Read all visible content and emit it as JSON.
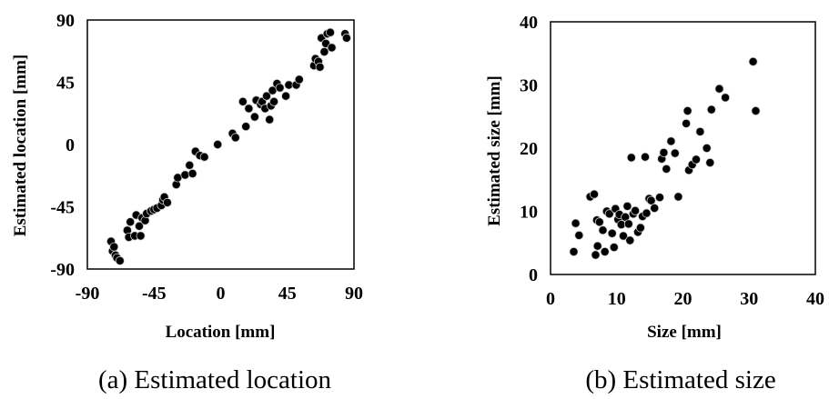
{
  "chart_data": [
    {
      "type": "scatter",
      "caption": "(a) Estimated location",
      "xlabel": "Location [mm]",
      "ylabel": "Estimated location [mm]",
      "xlim": [
        -90,
        90
      ],
      "ylim": [
        -90,
        90
      ],
      "xticks": [
        "-90",
        "-45",
        "0",
        "45",
        "90"
      ],
      "yticks": [
        "90",
        "45",
        "0",
        "-45",
        "-90"
      ],
      "grid": false,
      "points": [
        [
          -74,
          -70
        ],
        [
          -73,
          -77
        ],
        [
          -72,
          -74
        ],
        [
          -71,
          -80
        ],
        [
          -70,
          -82
        ],
        [
          -68,
          -84
        ],
        [
          -63,
          -62
        ],
        [
          -62,
          -67
        ],
        [
          -61,
          -56
        ],
        [
          -58,
          -66
        ],
        [
          -57,
          -51
        ],
        [
          -55,
          -59
        ],
        [
          -54,
          -66
        ],
        [
          -53,
          -53
        ],
        [
          -51,
          -55
        ],
        [
          -50,
          -50
        ],
        [
          -47,
          -48
        ],
        [
          -45,
          -47
        ],
        [
          -43,
          -46
        ],
        [
          -40,
          -44
        ],
        [
          -39,
          -40
        ],
        [
          -38,
          -38
        ],
        [
          -36,
          -42
        ],
        [
          -30,
          -29
        ],
        [
          -29,
          -24
        ],
        [
          -24,
          -22
        ],
        [
          -21,
          -15
        ],
        [
          -19,
          -21
        ],
        [
          -17,
          -5
        ],
        [
          -14,
          -8
        ],
        [
          -11,
          -9
        ],
        [
          -2,
          0
        ],
        [
          8,
          8
        ],
        [
          10,
          5
        ],
        [
          15,
          31
        ],
        [
          17,
          13
        ],
        [
          19,
          26
        ],
        [
          23,
          20
        ],
        [
          24,
          32
        ],
        [
          27,
          29
        ],
        [
          28,
          31
        ],
        [
          30,
          26
        ],
        [
          31,
          35
        ],
        [
          33,
          18
        ],
        [
          34,
          28
        ],
        [
          35,
          39
        ],
        [
          36,
          31
        ],
        [
          38,
          44
        ],
        [
          40,
          41
        ],
        [
          44,
          35
        ],
        [
          46,
          43
        ],
        [
          51,
          43
        ],
        [
          53,
          47
        ],
        [
          63,
          57
        ],
        [
          64,
          62
        ],
        [
          66,
          60
        ],
        [
          67,
          56
        ],
        [
          68,
          77
        ],
        [
          70,
          67
        ],
        [
          71,
          73
        ],
        [
          72,
          80
        ],
        [
          74,
          81
        ],
        [
          75,
          70
        ],
        [
          84,
          80
        ],
        [
          85,
          77
        ]
      ]
    },
    {
      "type": "scatter",
      "caption": "(b) Estimated size",
      "xlabel": "Size [mm]",
      "ylabel": "Estimated size [mm]",
      "xlim": [
        0,
        40
      ],
      "ylim": [
        0,
        40
      ],
      "xticks": [
        "0",
        "10",
        "20",
        "30",
        "40"
      ],
      "yticks": [
        "40",
        "30",
        "20",
        "10",
        "0"
      ],
      "grid": false,
      "points": [
        [
          3.5,
          3.6
        ],
        [
          3.8,
          8.1
        ],
        [
          4.3,
          6.2
        ],
        [
          6.0,
          12.3
        ],
        [
          6.6,
          12.7
        ],
        [
          6.8,
          3.1
        ],
        [
          7.0,
          8.6
        ],
        [
          7.1,
          4.5
        ],
        [
          7.4,
          8.3
        ],
        [
          7.9,
          7.0
        ],
        [
          8.2,
          3.6
        ],
        [
          8.5,
          10.0
        ],
        [
          8.9,
          9.6
        ],
        [
          9.3,
          6.5
        ],
        [
          9.6,
          4.3
        ],
        [
          9.8,
          10.4
        ],
        [
          10.2,
          8.7
        ],
        [
          10.4,
          9.5
        ],
        [
          10.7,
          7.9
        ],
        [
          11.0,
          6.1
        ],
        [
          11.3,
          9.1
        ],
        [
          11.6,
          10.8
        ],
        [
          11.8,
          8.0
        ],
        [
          12.0,
          5.4
        ],
        [
          12.2,
          18.5
        ],
        [
          12.5,
          9.6
        ],
        [
          12.8,
          10.1
        ],
        [
          13.2,
          6.7
        ],
        [
          13.6,
          7.4
        ],
        [
          13.9,
          9.2
        ],
        [
          14.3,
          18.6
        ],
        [
          14.5,
          9.7
        ],
        [
          14.9,
          12.0
        ],
        [
          15.2,
          11.7
        ],
        [
          15.7,
          10.5
        ],
        [
          16.5,
          12.2
        ],
        [
          16.8,
          18.3
        ],
        [
          17.1,
          19.3
        ],
        [
          17.5,
          16.7
        ],
        [
          18.2,
          21.1
        ],
        [
          18.8,
          19.2
        ],
        [
          19.3,
          12.3
        ],
        [
          20.5,
          23.9
        ],
        [
          20.7,
          25.9
        ],
        [
          20.9,
          16.5
        ],
        [
          21.4,
          17.4
        ],
        [
          22.0,
          18.2
        ],
        [
          22.6,
          22.6
        ],
        [
          23.6,
          20.0
        ],
        [
          24.1,
          17.7
        ],
        [
          24.3,
          26.1
        ],
        [
          25.5,
          29.4
        ],
        [
          26.4,
          28.0
        ],
        [
          30.6,
          33.7
        ],
        [
          31.0,
          25.9
        ]
      ]
    }
  ]
}
